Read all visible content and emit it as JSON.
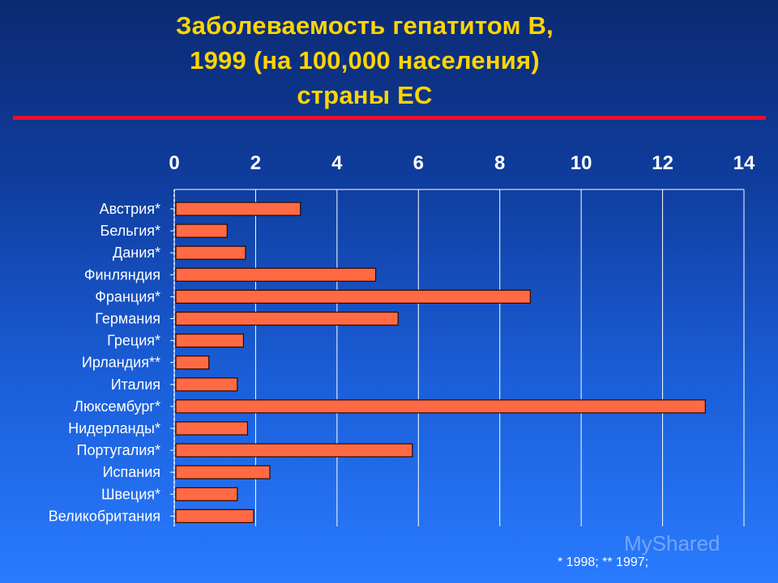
{
  "title_lines": [
    "Заболеваемость гепатитом B,",
    "1999 (на  100,000 населения)",
    "страны ЕС"
  ],
  "footnote": "* 1998; ** 1997;",
  "watermark": "MyShared",
  "colors": {
    "title": "#ffd500",
    "rule": "#e8102e",
    "bar_fill": "#ff6a45",
    "bar_stroke": "#2a0a00",
    "grid": "#ffffff"
  },
  "chart_data": {
    "type": "bar",
    "orientation": "horizontal",
    "title": "Заболеваемость гепатитом B, 1999 (на  100,000 населения) страны ЕС",
    "x_axis_position": "top",
    "xlim": [
      0,
      14
    ],
    "xticks": [
      0,
      2,
      4,
      6,
      8,
      10,
      12,
      14
    ],
    "grid": true,
    "categories": [
      "Австрия*",
      "Бельгия*",
      "Дания*",
      "Финляндия",
      "Франция*",
      "Германия",
      "Греция*",
      "Ирландия**",
      "Италия",
      "Люксембург*",
      "Нидерланды*",
      "Португалия*",
      "Испания",
      "Швеция*",
      "Великобритания"
    ],
    "values": [
      3.1,
      1.3,
      1.75,
      4.95,
      8.75,
      5.5,
      1.7,
      0.85,
      1.55,
      13.05,
      1.8,
      5.85,
      2.35,
      1.55,
      1.95
    ]
  }
}
